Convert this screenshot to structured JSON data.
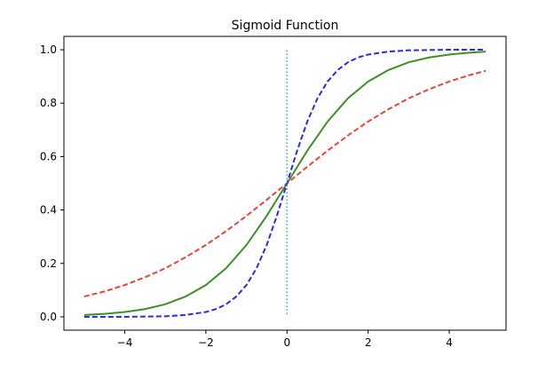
{
  "chart_data": {
    "type": "line",
    "title": "Sigmoid Function",
    "xlabel": "",
    "ylabel": "",
    "xlim": [
      -5.5,
      5.4
    ],
    "ylim": [
      -0.05,
      1.05
    ],
    "grid": false,
    "xticks": [
      -4,
      -2,
      0,
      2,
      4
    ],
    "xtick_labels": [
      "−4",
      "−2",
      "0",
      "2",
      "4"
    ],
    "yticks": [
      0.0,
      0.2,
      0.4,
      0.6,
      0.8,
      1.0
    ],
    "ytick_labels": [
      "0.0",
      "0.2",
      "0.4",
      "0.6",
      "0.8",
      "1.0"
    ],
    "series": [
      {
        "style": "dashed",
        "color": "#e8453c",
        "x": [
          -5,
          -4.5,
          -4,
          -3.5,
          -3,
          -2.5,
          -2,
          -1.5,
          -1,
          -0.5,
          0,
          0.5,
          1,
          1.5,
          2,
          2.5,
          3,
          3.5,
          4,
          4.5,
          4.9
        ],
        "y": [
          0.076,
          0.095,
          0.119,
          0.148,
          0.182,
          0.223,
          0.269,
          0.321,
          0.378,
          0.438,
          0.5,
          0.562,
          0.622,
          0.679,
          0.731,
          0.777,
          0.818,
          0.852,
          0.881,
          0.905,
          0.921
        ]
      },
      {
        "style": "solid",
        "color": "#3f8f29",
        "x": [
          -5,
          -4.5,
          -4,
          -3.5,
          -3,
          -2.5,
          -2,
          -1.5,
          -1,
          -0.5,
          0,
          0.5,
          1,
          1.5,
          2,
          2.5,
          3,
          3.5,
          4,
          4.5,
          4.9
        ],
        "y": [
          0.007,
          0.011,
          0.018,
          0.029,
          0.047,
          0.076,
          0.119,
          0.182,
          0.269,
          0.378,
          0.5,
          0.622,
          0.731,
          0.818,
          0.881,
          0.924,
          0.953,
          0.971,
          0.982,
          0.989,
          0.993
        ]
      },
      {
        "style": "dashed",
        "color": "#2a2af0",
        "x": [
          -5,
          -4.5,
          -4,
          -3.5,
          -3,
          -2.5,
          -2,
          -1.75,
          -1.5,
          -1.25,
          -1,
          -0.75,
          -0.5,
          -0.25,
          0,
          0.25,
          0.5,
          0.75,
          1,
          1.25,
          1.5,
          1.75,
          2,
          2.5,
          3,
          3.5,
          4,
          4.5,
          4.9
        ],
        "y": [
          0.0,
          0.0,
          0.0,
          0.001,
          0.002,
          0.007,
          0.018,
          0.029,
          0.047,
          0.076,
          0.119,
          0.182,
          0.269,
          0.378,
          0.5,
          0.622,
          0.731,
          0.818,
          0.881,
          0.924,
          0.953,
          0.971,
          0.982,
          0.993,
          0.998,
          0.999,
          1.0,
          1.0,
          1.0
        ]
      },
      {
        "style": "dotted",
        "color": "#4aa3c4",
        "x": [
          0,
          0
        ],
        "y": [
          0.01,
          1.0
        ]
      }
    ]
  }
}
